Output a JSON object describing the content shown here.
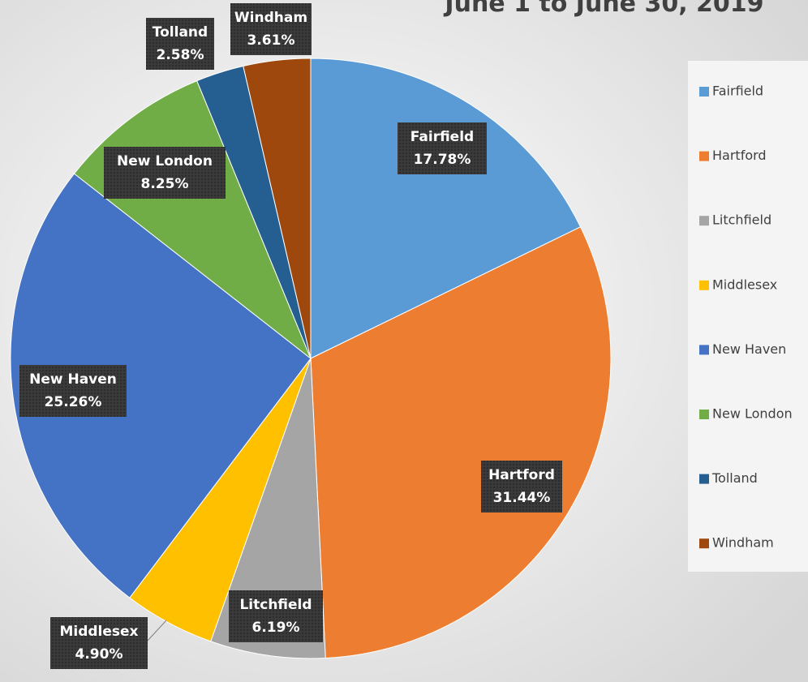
{
  "chart_data": {
    "type": "pie",
    "title": "June 1 to June 30, 2019",
    "categories": [
      "Fairfield",
      "Hartford",
      "Litchfield",
      "Middlesex",
      "New Haven",
      "New London",
      "Tolland",
      "Windham"
    ],
    "values": [
      17.78,
      31.44,
      6.19,
      4.9,
      25.26,
      8.25,
      2.58,
      3.61
    ],
    "value_labels": [
      "17.78%",
      "31.44%",
      "6.19%",
      "4.90%",
      "25.26%",
      "8.25%",
      "2.58%",
      "3.61%"
    ],
    "colors": [
      "#5b9bd5",
      "#ed7d31",
      "#a5a5a5",
      "#ffc000",
      "#4472c4",
      "#70ad47",
      "#255e91",
      "#9e480e"
    ],
    "legend": "right"
  }
}
